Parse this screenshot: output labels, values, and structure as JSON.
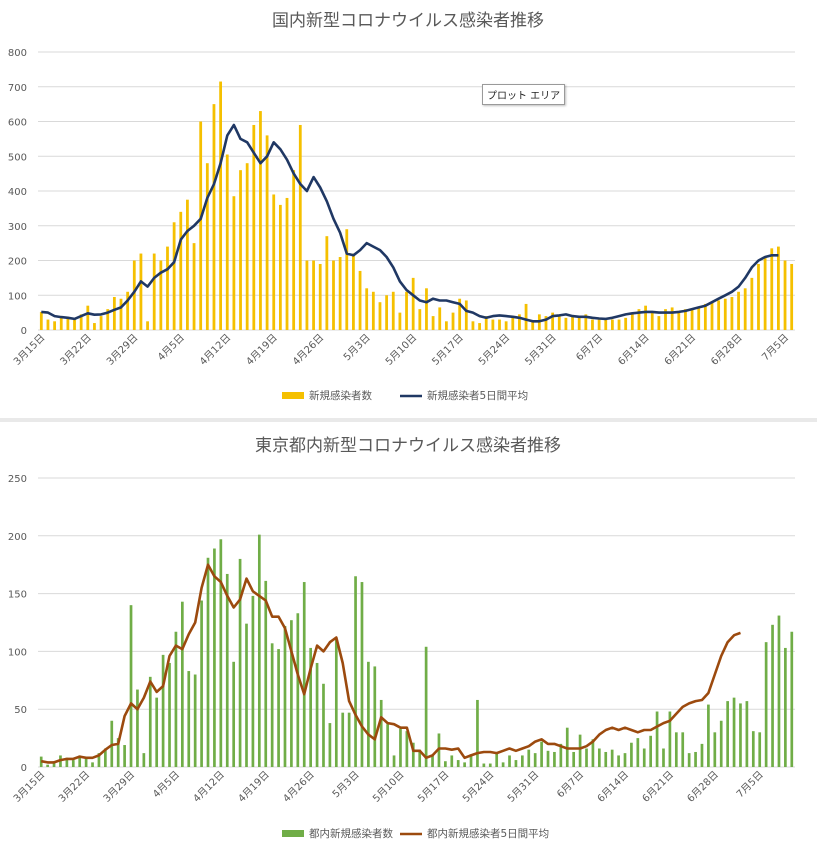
{
  "tooltip": "プロット エリア",
  "colors": {
    "national_bar": "#F5C000",
    "national_line": "#203864",
    "tokyo_bar": "#70AD47",
    "tokyo_line": "#9C4A0E",
    "grid": "#d9d9d9",
    "text": "#595959"
  },
  "chart_data": [
    {
      "type": "bar",
      "combo_line": true,
      "title": "国内新型コロナウイルス感染者推移",
      "ylim": [
        0,
        800
      ],
      "yticks": [
        0,
        100,
        200,
        300,
        400,
        500,
        600,
        700,
        800
      ],
      "x_tick_labels": [
        "3月15日",
        "3月22日",
        "3月29日",
        "4月5日",
        "4月12日",
        "4月19日",
        "4月26日",
        "5月3日",
        "5月10日",
        "5月17日",
        "5月24日",
        "5月31日",
        "6月7日",
        "6月14日",
        "6月21日",
        "6月28日",
        "7月5日"
      ],
      "x_tick_step_days": 7,
      "grid": true,
      "legend_position": "bottom",
      "series": [
        {
          "name": "新規感染者数",
          "kind": "bar",
          "values": [
            52,
            30,
            25,
            40,
            38,
            35,
            45,
            70,
            20,
            40,
            60,
            95,
            90,
            110,
            200,
            220,
            25,
            220,
            200,
            240,
            310,
            340,
            375,
            250,
            600,
            480,
            650,
            715,
            505,
            385,
            460,
            480,
            590,
            630,
            560,
            390,
            360,
            380,
            460,
            590,
            200,
            200,
            190,
            270,
            200,
            210,
            290,
            220,
            170,
            120,
            110,
            80,
            100,
            110,
            50,
            110,
            150,
            60,
            120,
            40,
            65,
            25,
            50,
            90,
            85,
            25,
            20,
            40,
            30,
            30,
            25,
            35,
            45,
            75,
            25,
            45,
            40,
            50,
            40,
            35,
            40,
            40,
            45,
            30,
            30,
            35,
            30,
            30,
            35,
            45,
            60,
            70,
            50,
            40,
            60,
            65,
            55,
            60,
            60,
            65,
            75,
            80,
            85,
            90,
            95,
            110,
            120,
            150,
            190,
            210,
            235,
            240,
            200,
            190
          ],
          "color": "#F5C000"
        },
        {
          "name": "新規感染者5日間平均",
          "kind": "line",
          "values": [
            52,
            50,
            40,
            37,
            35,
            32,
            40,
            48,
            44,
            45,
            50,
            58,
            65,
            85,
            110,
            140,
            125,
            150,
            165,
            175,
            195,
            260,
            285,
            300,
            320,
            380,
            420,
            480,
            560,
            590,
            550,
            540,
            510,
            480,
            500,
            540,
            520,
            490,
            450,
            420,
            400,
            440,
            410,
            370,
            320,
            280,
            220,
            215,
            230,
            250,
            240,
            230,
            210,
            180,
            140,
            115,
            100,
            85,
            80,
            90,
            85,
            85,
            80,
            75,
            55,
            50,
            40,
            35,
            40,
            42,
            40,
            38,
            35,
            30,
            25,
            25,
            30,
            40,
            42,
            45,
            40,
            38,
            38,
            35,
            33,
            32,
            35,
            40,
            45,
            48,
            50,
            52,
            52,
            50,
            50,
            50,
            52,
            55,
            60,
            65,
            70,
            80,
            90,
            100,
            110,
            125,
            150,
            180,
            200,
            210,
            215,
            215
          ],
          "color": "#203864"
        }
      ]
    },
    {
      "type": "bar",
      "combo_line": true,
      "title": "東京都内新型コロナウイルス感染者推移",
      "ylim": [
        0,
        250
      ],
      "yticks": [
        0,
        50,
        100,
        150,
        200,
        250
      ],
      "x_tick_labels": [
        "3月15日",
        "3月22日",
        "3月29日",
        "4月5日",
        "4月12日",
        "4月19日",
        "4月26日",
        "5月3日",
        "5月10日",
        "5月17日",
        "5月24日",
        "5月31日",
        "6月7日",
        "6月14日",
        "6月21日",
        "6月28日",
        "7月5日"
      ],
      "x_tick_step_days": 7,
      "grid": true,
      "legend_position": "bottom",
      "series": [
        {
          "name": "都内新規感染者数",
          "kind": "bar",
          "values": [
            9,
            2,
            5,
            10,
            8,
            6,
            10,
            7,
            4,
            12,
            16,
            40,
            25,
            19,
            140,
            67,
            12,
            78,
            60,
            97,
            90,
            117,
            143,
            83,
            80,
            144,
            181,
            189,
            197,
            167,
            91,
            180,
            124,
            148,
            201,
            161,
            107,
            102,
            122,
            127,
            133,
            160,
            103,
            90,
            72,
            38,
            110,
            47,
            47,
            165,
            160,
            91,
            87,
            58,
            37,
            10,
            33,
            31,
            21,
            15,
            104,
            10,
            29,
            5,
            10,
            6,
            4,
            11,
            58,
            3,
            3,
            13,
            4,
            10,
            6,
            10,
            15,
            12,
            22,
            14,
            13,
            20,
            34,
            13,
            28,
            16,
            24,
            16,
            13,
            15,
            10,
            12,
            21,
            25,
            16,
            27,
            48,
            16,
            48,
            30,
            30,
            12,
            13,
            20,
            54,
            30,
            40,
            57,
            60,
            55,
            57,
            31,
            30,
            108,
            123,
            131,
            103,
            117
          ],
          "color": "#70AD47"
        },
        {
          "name": "都内新規感染者5日間平均",
          "kind": "line",
          "values": [
            5,
            4,
            4,
            6,
            7,
            7,
            9,
            8,
            8,
            10,
            15,
            19,
            20,
            44,
            55,
            50,
            60,
            74,
            65,
            70,
            96,
            105,
            102,
            115,
            125,
            155,
            175,
            165,
            160,
            148,
            138,
            145,
            163,
            152,
            148,
            144,
            130,
            130,
            120,
            100,
            80,
            63,
            85,
            105,
            100,
            108,
            112,
            90,
            57,
            45,
            35,
            28,
            24,
            43,
            38,
            37,
            34,
            34,
            14,
            14,
            8,
            10,
            16,
            16,
            15,
            16,
            8,
            10,
            12,
            13,
            13,
            12,
            14,
            16,
            14,
            16,
            18,
            22,
            24,
            20,
            20,
            18,
            16,
            16,
            16,
            18,
            22,
            28,
            32,
            34,
            32,
            34,
            32,
            30,
            32,
            32,
            35,
            38,
            40,
            46,
            52,
            55,
            57,
            58,
            64,
            80,
            96,
            108,
            114,
            116
          ],
          "color": "#9C4A0E"
        }
      ]
    }
  ]
}
